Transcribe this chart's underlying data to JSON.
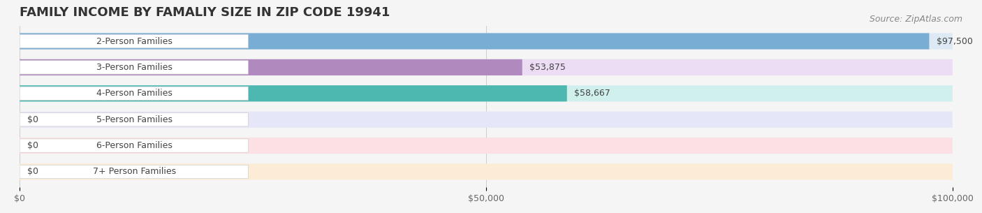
{
  "title": "FAMILY INCOME BY FAMALIY SIZE IN ZIP CODE 19941",
  "source": "Source: ZipAtlas.com",
  "categories": [
    "2-Person Families",
    "3-Person Families",
    "4-Person Families",
    "5-Person Families",
    "6-Person Families",
    "7+ Person Families"
  ],
  "values": [
    97500,
    53875,
    58667,
    0,
    0,
    0
  ],
  "bar_colors": [
    "#7aadd4",
    "#b08abf",
    "#4db8b0",
    "#aab0e0",
    "#f0909a",
    "#f5c888"
  ],
  "bar_bg_colors": [
    "#ddeaf5",
    "#ecddf5",
    "#d0f0ee",
    "#e5e7f8",
    "#fde0e3",
    "#fdecd5"
  ],
  "xlim": [
    0,
    100000
  ],
  "xticks": [
    0,
    50000,
    100000
  ],
  "xtick_labels": [
    "$0",
    "$50,000",
    "$100,000"
  ],
  "value_labels": [
    "$97,500",
    "$53,875",
    "$58,667",
    "$0",
    "$0",
    "$0"
  ],
  "bg_color": "#f5f5f5",
  "title_fontsize": 13,
  "label_fontsize": 9,
  "source_fontsize": 9
}
